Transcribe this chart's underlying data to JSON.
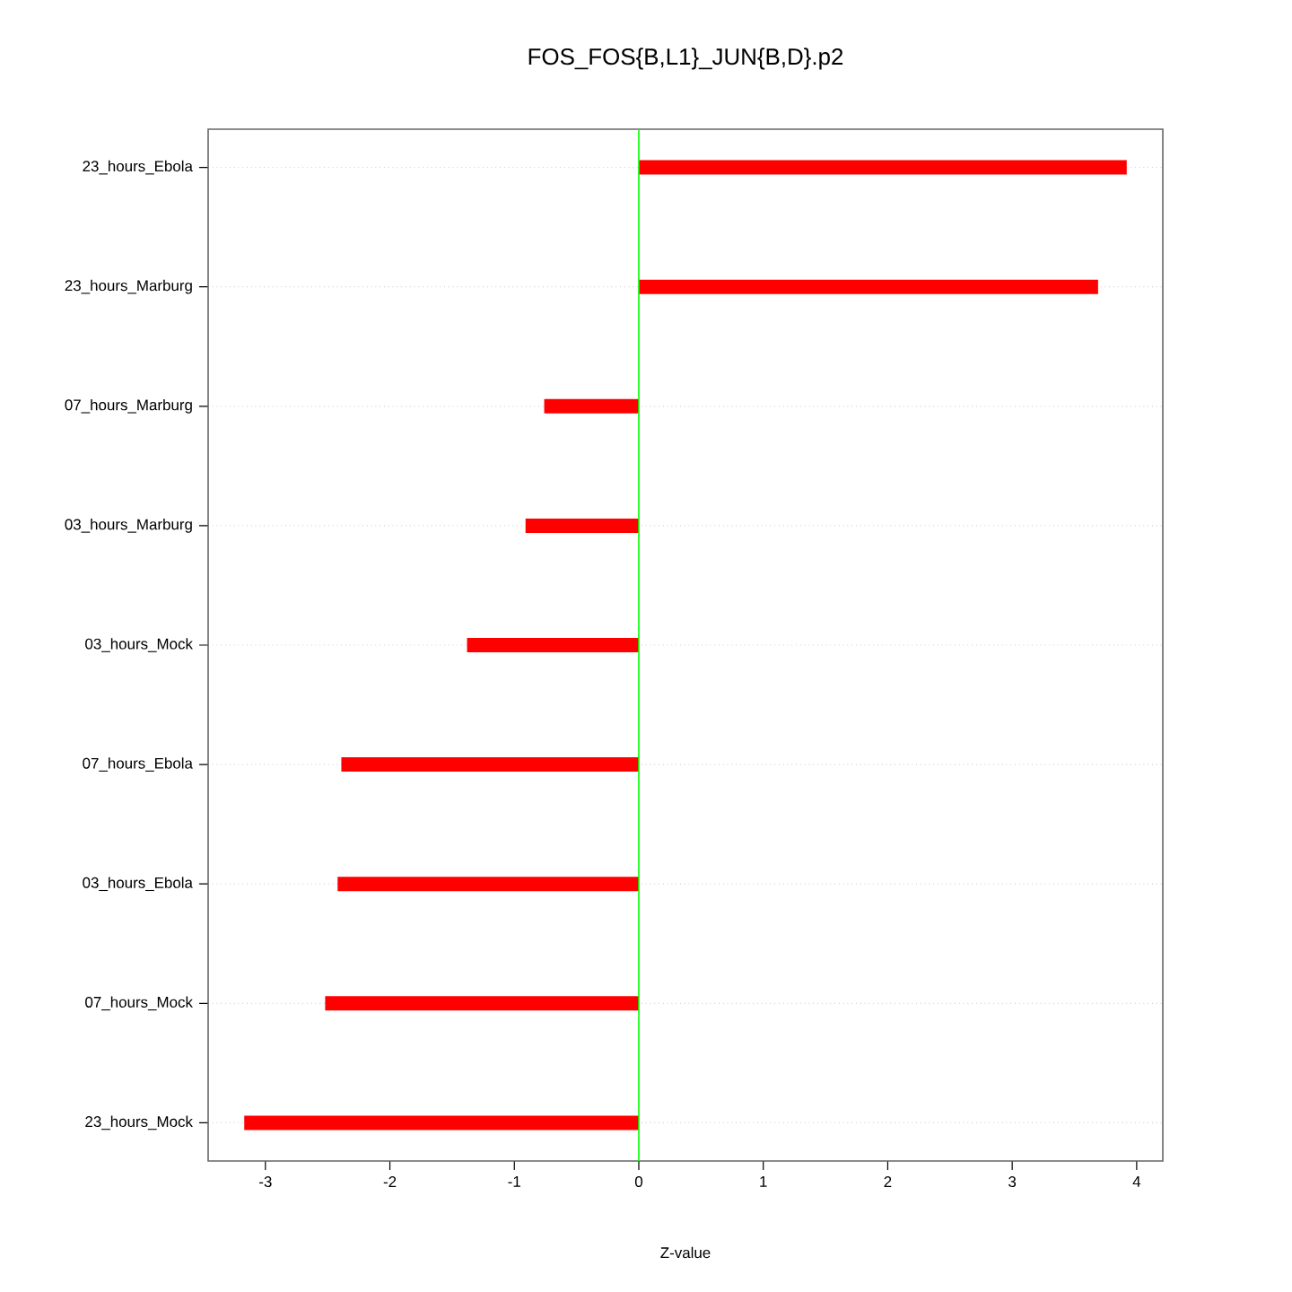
{
  "chart_data": {
    "type": "bar",
    "orientation": "horizontal",
    "title": "FOS_FOS{B,L1}_JUN{B,D}.p2",
    "xlabel": "Z-value",
    "categories": [
      "23_hours_Ebola",
      "23_hours_Marburg",
      "07_hours_Marburg",
      "03_hours_Marburg",
      "03_hours_Mock",
      "07_hours_Ebola",
      "03_hours_Ebola",
      "07_hours_Mock",
      "23_hours_Mock"
    ],
    "values": [
      3.92,
      3.69,
      -0.76,
      -0.91,
      -1.38,
      -2.39,
      -2.42,
      -2.52,
      -3.17
    ],
    "color": "#ff0000",
    "xlim": [
      -3.46,
      4.21
    ],
    "xticks": [
      -3,
      -2,
      -1,
      0,
      1,
      2,
      3,
      4
    ],
    "grid": "y",
    "ref_lines": [
      {
        "axis": "x",
        "value": 0,
        "color": "#00ff00"
      }
    ]
  }
}
